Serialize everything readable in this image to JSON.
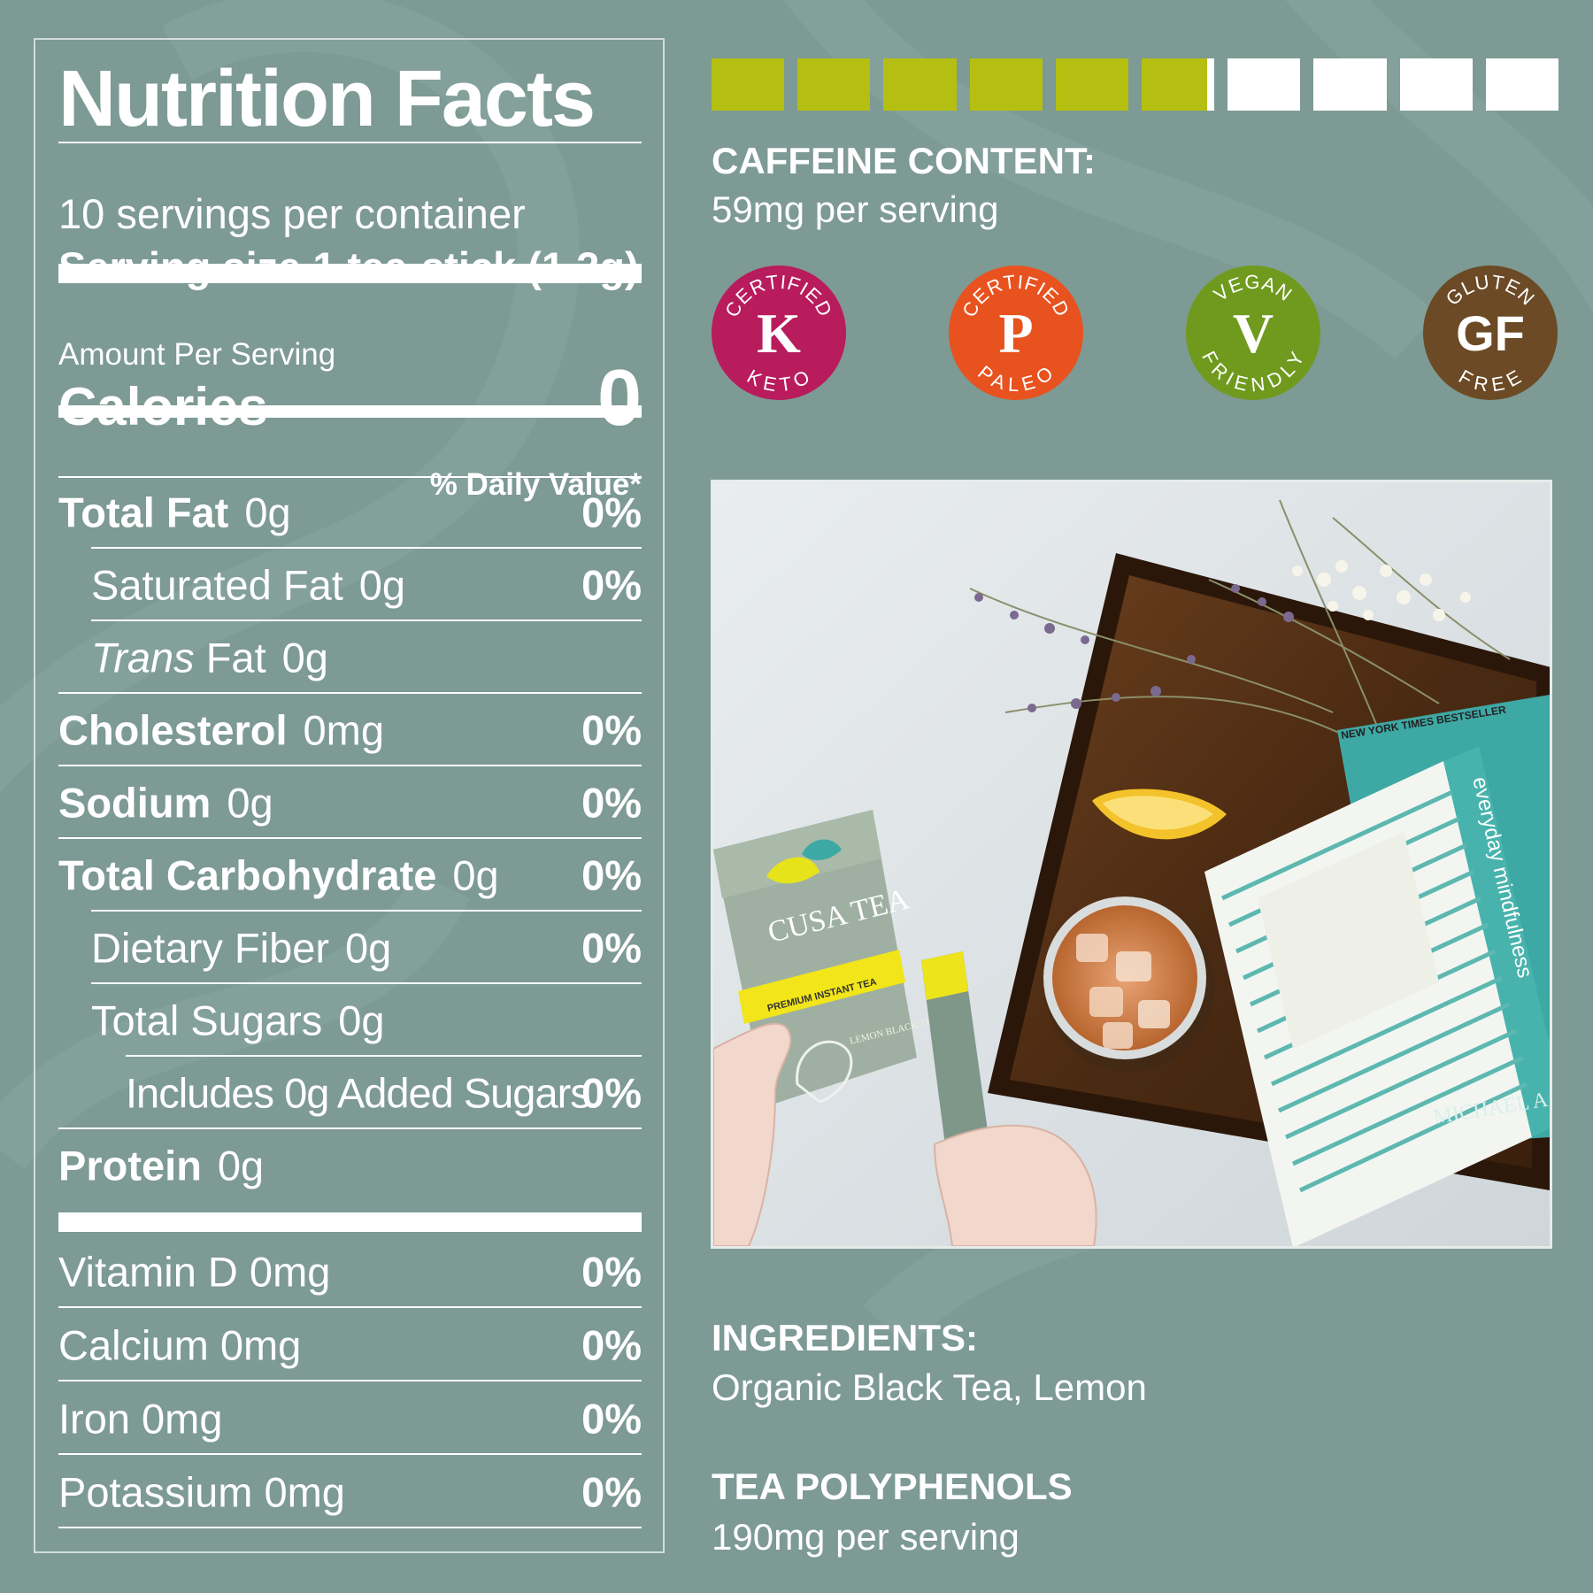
{
  "colors": {
    "background": "#7d9a94",
    "caffeine_filled": "#b5bf12",
    "caffeine_empty": "#ffffff",
    "keto": "#b81c5c",
    "paleo": "#e8521f",
    "vegan": "#6f9a1e",
    "gluten_free": "#6b4a25"
  },
  "nutrition": {
    "title": "Nutrition Facts",
    "servings": "10 servings per container",
    "serving_size": "Serving size 1 tea-stick (1.2g)",
    "amount_per_serving": "Amount Per Serving",
    "calories_label": "Calories",
    "calories_value": "0",
    "daily_value_header": "% Daily Value*",
    "rows": [
      {
        "label": "Total Fat",
        "value": "0g",
        "pct": "0%"
      },
      {
        "label": "Saturated Fat",
        "value": "0g",
        "pct": "0%"
      },
      {
        "label_italic": "Trans",
        "label": "Fat",
        "value": "0g",
        "pct": ""
      },
      {
        "label": "Cholesterol",
        "value": "0mg",
        "pct": "0%"
      },
      {
        "label": "Sodium",
        "value": "0g",
        "pct": "0%"
      },
      {
        "label": "Total Carbohydrate",
        "value": "0g",
        "pct": "0%"
      },
      {
        "label": "Dietary Fiber",
        "value": "0g",
        "pct": "0%"
      },
      {
        "label": "Total Sugars",
        "value": "0g",
        "pct": ""
      },
      {
        "label": "Includes 0g Added Sugars",
        "pct": "0%"
      },
      {
        "label": "Protein",
        "value": "0g",
        "pct": ""
      }
    ],
    "vitamins": [
      {
        "label": "Vitamin D 0mg",
        "pct": "0%"
      },
      {
        "label": "Calcium 0mg",
        "pct": "0%"
      },
      {
        "label": "Iron 0mg",
        "pct": "0%"
      },
      {
        "label": "Potassium 0mg",
        "pct": "0%"
      }
    ]
  },
  "caffeine": {
    "title": "CAFFEINE CONTENT:",
    "value": "59mg per serving",
    "level": 0.59,
    "segments": 10
  },
  "badges": [
    {
      "top": "CERTIFIED",
      "letter": "K",
      "bottom": "KETO",
      "icon": "keto-badge-icon"
    },
    {
      "top": "CERTIFIED",
      "letter": "P",
      "bottom": "PALEO",
      "icon": "paleo-badge-icon"
    },
    {
      "top": "VEGAN",
      "letter": "V",
      "bottom": "FRIENDLY",
      "icon": "vegan-badge-icon"
    },
    {
      "top": "GLUTEN",
      "letter": "GF",
      "bottom": "FREE",
      "icon": "gluten-free-badge-icon"
    }
  ],
  "photo": {
    "tea_box": {
      "brand": "CUSA TEA",
      "tagline": "PREMIUM INSTANT TEA",
      "flavor": "LEMON BLACK TEA"
    },
    "book": {
      "title": "everyday mindfulness",
      "banner": "NEW YORK TIMES BESTSELLER",
      "author": "MICHAEL A"
    }
  },
  "ingredients": {
    "title": "INGREDIENTS:",
    "value": "Organic Black Tea, Lemon"
  },
  "polyphenols": {
    "title": "TEA POLYPHENOLS",
    "value": "190mg per serving"
  }
}
